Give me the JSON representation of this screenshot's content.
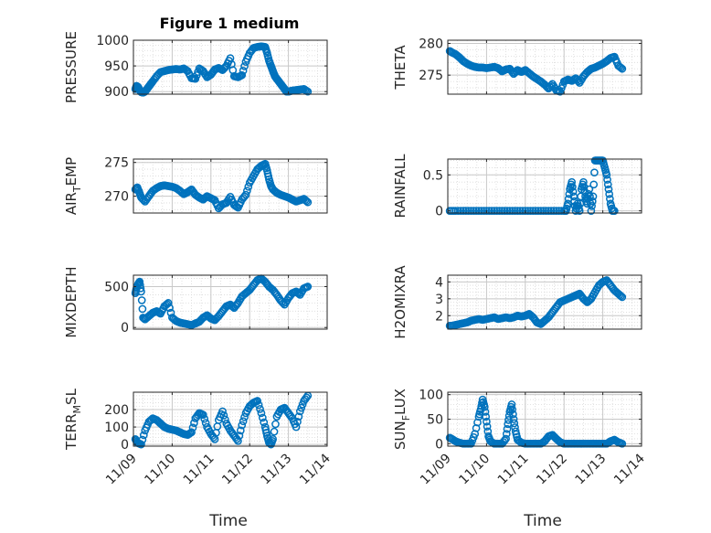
{
  "figure": {
    "title": "Figure 1 medium",
    "marker_color": "#0072BD"
  },
  "chart_data": [
    {
      "type": "scatter",
      "title": "Figure 1 medium",
      "ylabel": "PRESSURE",
      "ylabel_parts": [
        "PRESSURE"
      ],
      "ylim": [
        895,
        1000
      ],
      "yticks": [
        900,
        950,
        1000
      ],
      "ytick_labels": [
        "900",
        "950",
        "1000"
      ],
      "xlim": [
        0,
        5
      ],
      "grid": true,
      "x": [
        0.05,
        0.08,
        0.12,
        0.16,
        0.2,
        0.25,
        0.3,
        0.35,
        0.4,
        0.45,
        0.5,
        0.6,
        0.7,
        0.8,
        0.9,
        1.0,
        1.1,
        1.2,
        1.3,
        1.4,
        1.5,
        1.6,
        1.7,
        1.8,
        1.9,
        2.0,
        2.1,
        2.2,
        2.3,
        2.4,
        2.5,
        2.6,
        2.7,
        2.8,
        2.9,
        3.0,
        3.1,
        3.2,
        3.3,
        3.4,
        3.45,
        3.5,
        3.55,
        3.6,
        3.65,
        3.7,
        3.75,
        3.8,
        3.85,
        3.9,
        3.95,
        4.0,
        4.05,
        4.1,
        4.2,
        4.3,
        4.4,
        4.5
      ],
      "y": [
        905,
        911,
        909,
        903,
        899,
        898,
        900,
        905,
        910,
        915,
        920,
        930,
        938,
        940,
        942,
        943,
        944,
        943,
        945,
        940,
        926,
        925,
        945,
        940,
        928,
        933,
        943,
        946,
        942,
        950,
        965,
        930,
        928,
        932,
        958,
        975,
        985,
        987,
        988,
        987,
        975,
        960,
        950,
        940,
        930,
        925,
        920,
        915,
        910,
        905,
        900,
        900,
        901,
        902,
        903,
        904,
        905,
        900
      ]
    },
    {
      "type": "scatter",
      "ylabel": "THETA",
      "ylabel_parts": [
        "THETA"
      ],
      "ylim": [
        272,
        280.5
      ],
      "yticks": [
        275,
        280
      ],
      "ytick_labels": [
        "275",
        "280"
      ],
      "xlim": [
        0,
        5
      ],
      "grid": true,
      "x": [
        0.05,
        0.1,
        0.2,
        0.3,
        0.4,
        0.5,
        0.6,
        0.7,
        0.8,
        0.9,
        1.0,
        1.1,
        1.2,
        1.3,
        1.4,
        1.5,
        1.6,
        1.7,
        1.8,
        1.9,
        2.0,
        2.1,
        2.2,
        2.3,
        2.4,
        2.5,
        2.6,
        2.7,
        2.8,
        2.9,
        3.0,
        3.1,
        3.2,
        3.3,
        3.4,
        3.5,
        3.6,
        3.7,
        3.8,
        3.9,
        4.0,
        4.1,
        4.2,
        4.3,
        4.4,
        4.5
      ],
      "y": [
        278.8,
        278.6,
        278.3,
        277.8,
        277.2,
        276.8,
        276.5,
        276.3,
        276.2,
        276.2,
        276.1,
        276.2,
        276.3,
        276.1,
        275.6,
        275.9,
        276.0,
        275.2,
        275.8,
        275.5,
        275.8,
        275.3,
        274.8,
        274.4,
        274.0,
        273.5,
        272.9,
        273.6,
        272.6,
        272.4,
        274.0,
        274.3,
        274.1,
        274.5,
        273.8,
        274.8,
        275.5,
        276.0,
        276.2,
        276.5,
        276.8,
        277.2,
        277.7,
        277.9,
        276.5,
        276.0
      ]
    },
    {
      "type": "scatter",
      "ylabel": "AIR_TEMP",
      "ylabel_parts": [
        "AIR",
        "T",
        "EMP"
      ],
      "ylim": [
        267.5,
        275.5
      ],
      "yticks": [
        270,
        275
      ],
      "ytick_labels": [
        "270",
        "275"
      ],
      "xlim": [
        0,
        5
      ],
      "grid": true,
      "x": [
        0.05,
        0.1,
        0.15,
        0.2,
        0.3,
        0.4,
        0.5,
        0.6,
        0.7,
        0.8,
        0.9,
        1.0,
        1.1,
        1.2,
        1.3,
        1.4,
        1.5,
        1.6,
        1.7,
        1.8,
        1.9,
        2.0,
        2.1,
        2.2,
        2.3,
        2.4,
        2.5,
        2.6,
        2.7,
        2.8,
        2.9,
        3.0,
        3.1,
        3.2,
        3.3,
        3.4,
        3.45,
        3.5,
        3.55,
        3.6,
        3.7,
        3.8,
        3.9,
        4.0,
        4.1,
        4.2,
        4.3,
        4.4,
        4.5
      ],
      "y": [
        271.0,
        271.3,
        270.6,
        269.8,
        269.2,
        270.0,
        270.8,
        271.2,
        271.5,
        271.6,
        271.5,
        271.4,
        271.2,
        270.8,
        270.3,
        270.6,
        271.0,
        270.2,
        269.8,
        269.5,
        270.0,
        269.7,
        269.4,
        268.2,
        268.8,
        269.0,
        269.9,
        268.7,
        268.3,
        269.5,
        270.2,
        272.0,
        273.0,
        274.0,
        274.5,
        274.8,
        273.8,
        272.5,
        271.5,
        271.0,
        270.5,
        270.2,
        270.0,
        269.8,
        269.5,
        269.2,
        269.4,
        269.6,
        269.1
      ]
    },
    {
      "type": "scatter",
      "ylabel": "RAINFALL",
      "ylabel_parts": [
        "RAINFALL"
      ],
      "ylim": [
        -0.03,
        0.72
      ],
      "yticks": [
        0,
        0.5
      ],
      "ytick_labels": [
        "0",
        "0.5"
      ],
      "xlim": [
        0,
        5
      ],
      "grid": true,
      "x": [
        0.05,
        0.2,
        0.4,
        0.6,
        0.8,
        1.0,
        1.2,
        1.4,
        1.6,
        1.8,
        2.0,
        2.2,
        2.4,
        2.6,
        2.8,
        3.0,
        3.05,
        3.1,
        3.15,
        3.2,
        3.25,
        3.3,
        3.35,
        3.4,
        3.45,
        3.5,
        3.55,
        3.6,
        3.65,
        3.7,
        3.75,
        3.8,
        3.85,
        3.9,
        3.95,
        4.0,
        4.05,
        4.1,
        4.15,
        4.2,
        4.25,
        4.3
      ],
      "y": [
        0,
        0,
        0,
        0,
        0,
        0,
        0,
        0,
        0,
        0,
        0,
        0,
        0,
        0,
        0,
        0,
        0,
        0.1,
        0.3,
        0.4,
        0.2,
        0,
        0.1,
        0,
        0.3,
        0.4,
        0.2,
        0.1,
        0.3,
        0,
        0.2,
        0.7,
        0.7,
        0.7,
        0.7,
        0.7,
        0.6,
        0.5,
        0.3,
        0.1,
        0,
        0
      ]
    },
    {
      "type": "scatter",
      "ylabel": "MIXDEPTH",
      "ylabel_parts": [
        "MIXDEPTH"
      ],
      "ylim": [
        -20,
        640
      ],
      "yticks": [
        0,
        500
      ],
      "ytick_labels": [
        "0",
        "500"
      ],
      "xlim": [
        0,
        5
      ],
      "grid": true,
      "x": [
        0.05,
        0.08,
        0.12,
        0.16,
        0.2,
        0.25,
        0.3,
        0.4,
        0.5,
        0.6,
        0.7,
        0.8,
        0.9,
        1.0,
        1.1,
        1.2,
        1.3,
        1.4,
        1.5,
        1.6,
        1.7,
        1.8,
        1.9,
        2.0,
        2.1,
        2.2,
        2.3,
        2.4,
        2.5,
        2.6,
        2.7,
        2.8,
        2.9,
        3.0,
        3.1,
        3.2,
        3.3,
        3.4,
        3.5,
        3.6,
        3.7,
        3.8,
        3.9,
        4.0,
        4.1,
        4.2,
        4.3,
        4.4,
        4.5
      ],
      "y": [
        420,
        480,
        530,
        560,
        440,
        120,
        100,
        140,
        180,
        200,
        170,
        260,
        300,
        120,
        80,
        60,
        50,
        40,
        30,
        50,
        70,
        120,
        150,
        110,
        90,
        140,
        200,
        260,
        280,
        240,
        300,
        380,
        420,
        460,
        520,
        580,
        600,
        560,
        500,
        460,
        400,
        330,
        280,
        360,
        420,
        440,
        400,
        480,
        500
      ]
    },
    {
      "type": "scatter",
      "ylabel": "H2OMIXRA",
      "ylabel_parts": [
        "H2OMIXRA"
      ],
      "ylim": [
        1.2,
        4.4
      ],
      "yticks": [
        2,
        3,
        4
      ],
      "ytick_labels": [
        "2",
        "3",
        "4"
      ],
      "xlim": [
        0,
        5
      ],
      "grid": true,
      "x": [
        0.05,
        0.1,
        0.2,
        0.3,
        0.4,
        0.5,
        0.6,
        0.7,
        0.8,
        0.9,
        1.0,
        1.1,
        1.2,
        1.3,
        1.4,
        1.5,
        1.6,
        1.7,
        1.8,
        1.9,
        2.0,
        2.1,
        2.2,
        2.3,
        2.4,
        2.5,
        2.6,
        2.7,
        2.8,
        2.9,
        3.0,
        3.1,
        3.2,
        3.3,
        3.4,
        3.5,
        3.6,
        3.7,
        3.8,
        3.9,
        4.0,
        4.1,
        4.2,
        4.3,
        4.4,
        4.5
      ],
      "y": [
        1.4,
        1.4,
        1.45,
        1.5,
        1.55,
        1.6,
        1.7,
        1.75,
        1.8,
        1.75,
        1.8,
        1.85,
        1.9,
        1.8,
        1.85,
        1.9,
        1.85,
        1.9,
        2.0,
        1.95,
        2.0,
        2.1,
        1.9,
        1.6,
        1.5,
        1.7,
        1.9,
        2.2,
        2.5,
        2.8,
        2.9,
        3.0,
        3.1,
        3.2,
        3.3,
        3.0,
        2.8,
        3.0,
        3.4,
        3.8,
        4.0,
        4.1,
        3.8,
        3.5,
        3.3,
        3.1
      ]
    },
    {
      "type": "scatter",
      "ylabel": "TERR_MSL",
      "ylabel_parts": [
        "TERR",
        "M",
        "SL"
      ],
      "ylim": [
        -10,
        300
      ],
      "yticks": [
        0,
        100,
        200
      ],
      "ytick_labels": [
        "0",
        "100",
        "200"
      ],
      "xlim": [
        0,
        5
      ],
      "grid": true,
      "x": [
        0.05,
        0.1,
        0.15,
        0.2,
        0.3,
        0.4,
        0.5,
        0.6,
        0.7,
        0.8,
        0.9,
        1.0,
        1.1,
        1.2,
        1.3,
        1.4,
        1.5,
        1.6,
        1.7,
        1.8,
        1.9,
        2.0,
        2.1,
        2.2,
        2.3,
        2.4,
        2.5,
        2.6,
        2.7,
        2.8,
        2.9,
        3.0,
        3.1,
        3.2,
        3.3,
        3.4,
        3.45,
        3.5,
        3.55,
        3.6,
        3.7,
        3.8,
        3.9,
        4.0,
        4.1,
        4.2,
        4.3,
        4.4,
        4.5
      ],
      "y": [
        30,
        10,
        5,
        0,
        80,
        130,
        150,
        140,
        120,
        100,
        90,
        85,
        80,
        70,
        60,
        55,
        70,
        150,
        180,
        170,
        100,
        60,
        30,
        140,
        190,
        120,
        80,
        50,
        20,
        110,
        180,
        220,
        240,
        250,
        180,
        100,
        50,
        10,
        0,
        30,
        160,
        200,
        210,
        180,
        150,
        100,
        190,
        250,
        280
      ]
    },
    {
      "type": "scatter",
      "ylabel": "SUN_FLUX",
      "ylabel_parts": [
        "SUN",
        "F",
        "LUX"
      ],
      "ylim": [
        -5,
        105
      ],
      "yticks": [
        0,
        50,
        100
      ],
      "ytick_labels": [
        "0",
        "50",
        "100"
      ],
      "xlim": [
        0,
        5
      ],
      "grid": true,
      "xlabel": "Time",
      "x": [
        0.05,
        0.1,
        0.2,
        0.3,
        0.4,
        0.5,
        0.6,
        0.7,
        0.8,
        0.85,
        0.9,
        0.95,
        1.0,
        1.05,
        1.1,
        1.2,
        1.3,
        1.4,
        1.5,
        1.55,
        1.6,
        1.65,
        1.7,
        1.75,
        1.8,
        1.9,
        2.0,
        2.1,
        2.2,
        2.3,
        2.4,
        2.5,
        2.6,
        2.7,
        2.8,
        2.9,
        3.0,
        3.1,
        3.2,
        3.3,
        3.4,
        3.5,
        3.6,
        3.7,
        3.8,
        3.9,
        4.0,
        4.1,
        4.2,
        4.3,
        4.4,
        4.5
      ],
      "y": [
        12,
        10,
        5,
        2,
        0,
        0,
        0,
        20,
        55,
        70,
        90,
        75,
        45,
        15,
        5,
        0,
        0,
        0,
        10,
        40,
        65,
        80,
        50,
        25,
        8,
        2,
        0,
        0,
        0,
        0,
        0,
        5,
        15,
        18,
        10,
        3,
        0,
        0,
        0,
        0,
        0,
        0,
        0,
        0,
        0,
        0,
        0,
        0,
        5,
        8,
        3,
        0
      ]
    }
  ],
  "x_axis": {
    "label": "Time",
    "ticks": [
      0,
      1,
      2,
      3,
      4,
      5
    ],
    "tick_labels": [
      "11/09",
      "11/10",
      "11/11",
      "11/12",
      "11/13",
      "11/14"
    ]
  }
}
